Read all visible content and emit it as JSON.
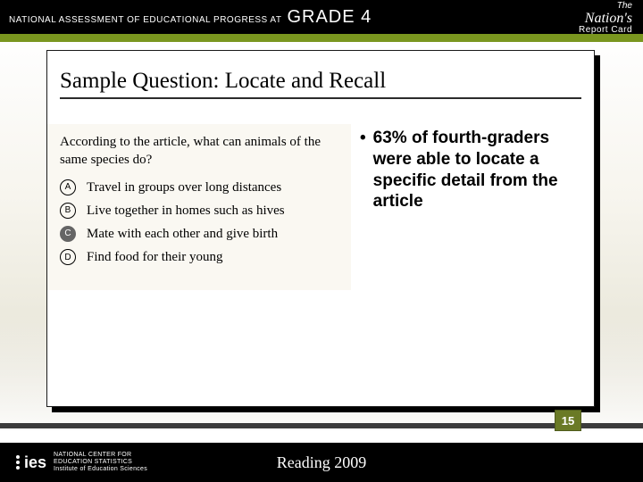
{
  "header": {
    "program": "NATIONAL ASSESSMENT OF EDUCATIONAL PROGRESS AT",
    "grade": "GRADE 4",
    "badge_the": "The",
    "badge_nation": "Nation's",
    "badge_report": "Report Card"
  },
  "colors": {
    "green_bar": "#7a961f",
    "card_shadow": "#000000",
    "page_num_bg": "#6a7a26",
    "footer_teal_top": "#1c5f77",
    "footer_teal_bottom": "#48889d",
    "question_bg": "#faf8f2"
  },
  "slide": {
    "title": "Sample Question: Locate and Recall",
    "question": "According to the article, what can animals of the same species do?",
    "options": [
      {
        "letter": "A",
        "text": "Travel in groups over long distances",
        "selected": false
      },
      {
        "letter": "B",
        "text": "Live together in homes such as hives",
        "selected": false
      },
      {
        "letter": "C",
        "text": "Mate with each other and give birth",
        "selected": true
      },
      {
        "letter": "D",
        "text": "Find food for their young",
        "selected": false
      }
    ],
    "bullet": "63% of fourth-graders were able to locate a specific detail from the article",
    "page_number": "15"
  },
  "footer": {
    "ies_label": "ies",
    "ies_line1": "NATIONAL CENTER FOR",
    "ies_line2": "EDUCATION STATISTICS",
    "ies_line3": "Institute of Education Sciences",
    "center": "Reading 2009"
  }
}
